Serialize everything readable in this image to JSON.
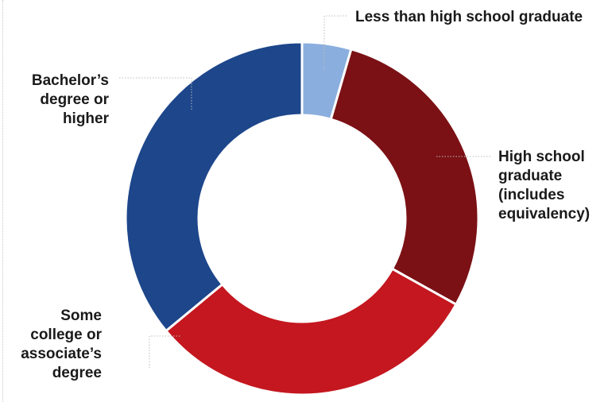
{
  "chart_data": {
    "type": "pie",
    "donut": true,
    "legend": "none",
    "slices": [
      {
        "label": "Less than high school graduate",
        "value": 4.5,
        "color": "#8aaede"
      },
      {
        "label": "High school graduate (includes equivalency)",
        "value": 28.6,
        "color": "#7b1115"
      },
      {
        "label": "Some college or associate’s degree",
        "value": 30.9,
        "color": "#c4171f"
      },
      {
        "label": "Bachelor’s degree or higher",
        "value": 36.0,
        "color": "#1d468b"
      }
    ]
  }
}
